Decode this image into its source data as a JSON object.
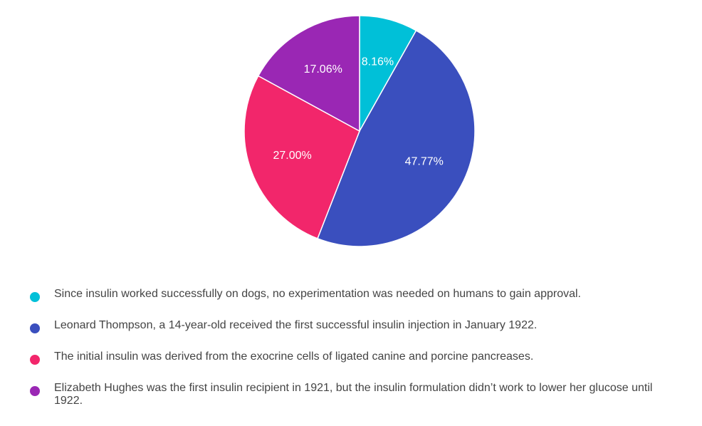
{
  "chart_data": {
    "type": "pie",
    "slices": [
      {
        "label": "Since insulin worked successfully on dogs, no experimentation was needed on humans to gain approval.",
        "value": 8.16,
        "display": "8.16%",
        "color": "#00c0d8"
      },
      {
        "label": "Leonard Thompson, a 14-year-old received the first successful insulin injection in January 1922.",
        "value": 47.77,
        "display": "47.77%",
        "color": "#3a4fbe"
      },
      {
        "label": "The initial insulin was derived from the exocrine cells of ligated canine and porcine pancreases.",
        "value": 27.0,
        "display": "27.00%",
        "color": "#f2266b"
      },
      {
        "label": "Elizabeth Hughes was the first insulin recipient in 1921, but the insulin formulation didn’t work to lower her glucose until 1922.",
        "value": 17.06,
        "display": "17.06%",
        "color": "#9a27b4"
      }
    ],
    "legend_position": "bottom"
  }
}
